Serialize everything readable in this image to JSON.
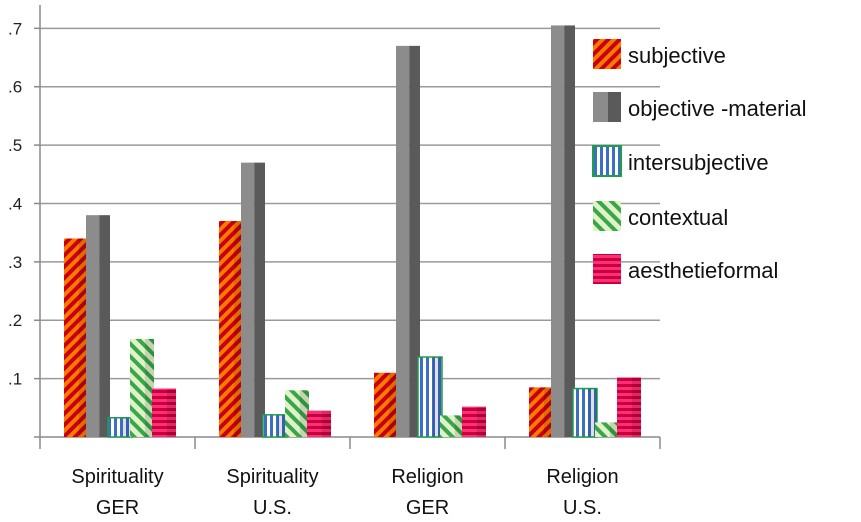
{
  "chart_data": {
    "type": "bar",
    "categories": [
      [
        "Spirituality",
        "GER"
      ],
      [
        "Spirituality",
        "U.S."
      ],
      [
        "Religion",
        "GER"
      ],
      [
        "Religion",
        "U.S."
      ]
    ],
    "series": [
      {
        "name": "subjective",
        "values": [
          0.34,
          0.37,
          0.11,
          0.085
        ],
        "pattern": "diagonal-stripes",
        "colors": [
          "#ff7a00",
          "#c80014"
        ]
      },
      {
        "name": "objective -material",
        "values": [
          0.38,
          0.47,
          0.67,
          0.705
        ],
        "pattern": "solid-3d",
        "colors": [
          "#8c8c8c",
          "#5a5a5a"
        ]
      },
      {
        "name": "intersubjective",
        "values": [
          0.033,
          0.038,
          0.137,
          0.083
        ],
        "pattern": "vertical-stripes",
        "colors": [
          "#ffffff",
          "#3c6ec8"
        ],
        "border": "#1f9e4a"
      },
      {
        "name": "contextual",
        "values": [
          0.168,
          0.08,
          0.037,
          0.025
        ],
        "pattern": "diagonal-stripes-reverse",
        "colors": [
          "#dff2c8",
          "#3aa64a"
        ]
      },
      {
        "name": "aesthetieformal",
        "values": [
          0.083,
          0.045,
          0.052,
          0.102
        ],
        "pattern": "horizontal-stripes",
        "colors": [
          "#ff2e78",
          "#c8003c"
        ]
      }
    ],
    "yticks": [
      ".1",
      ".2",
      ".3",
      ".4",
      ".5",
      ".6",
      ".7"
    ],
    "ylim": [
      0,
      0.74
    ],
    "grid": true,
    "legend": "right"
  }
}
